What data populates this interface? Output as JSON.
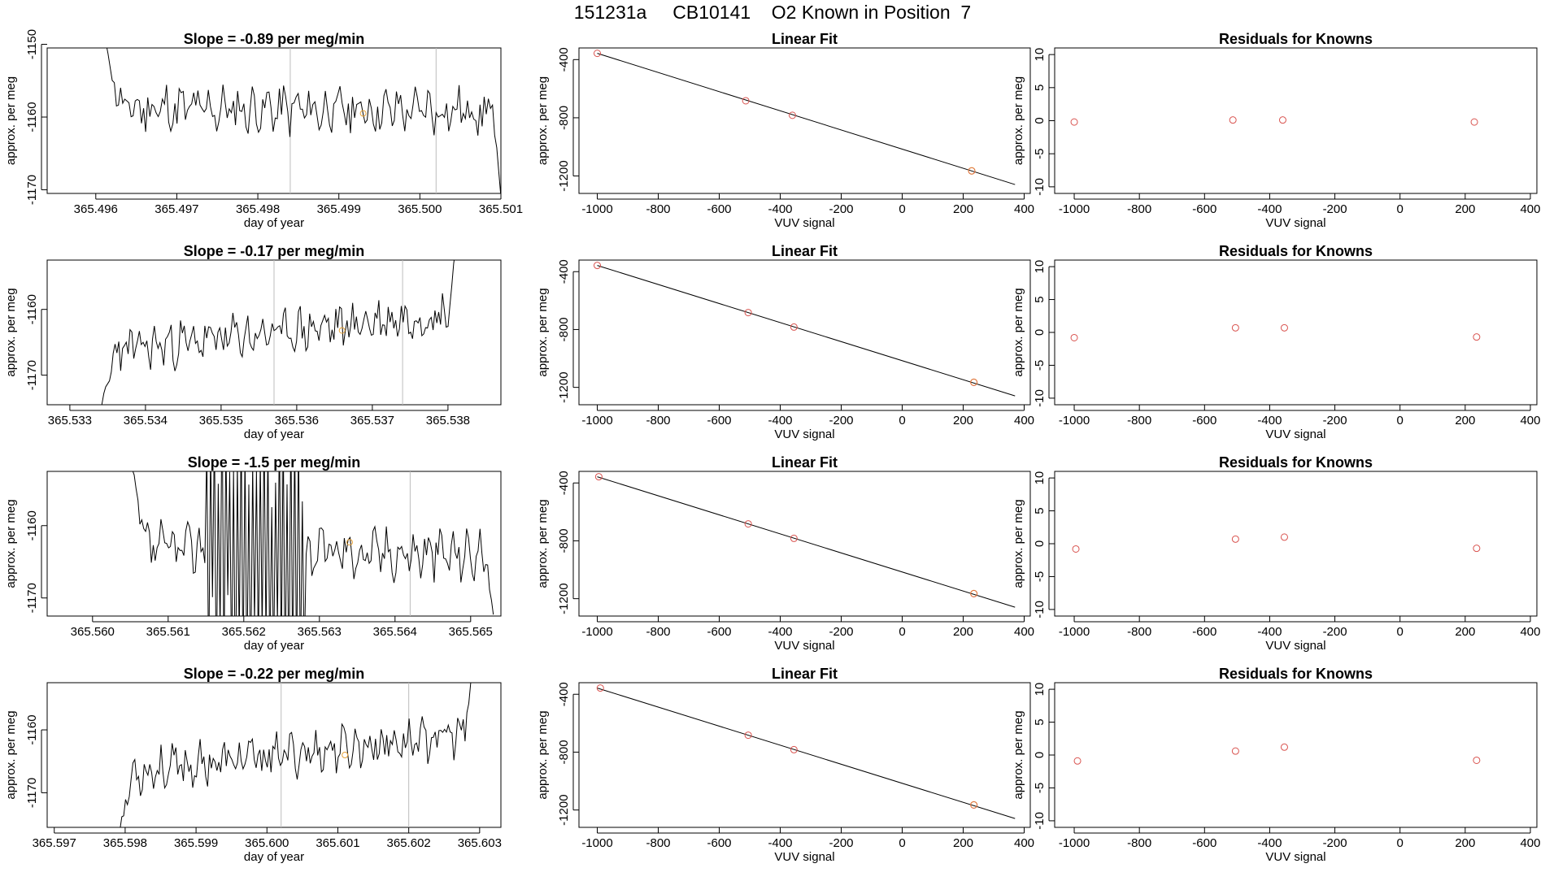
{
  "page": {
    "title": "151231a     CB10141    O2 Known in Position  7"
  },
  "colors": {
    "line": "#000000",
    "point_open": "#d9534f",
    "point_highlight": "#e8a33a",
    "vline": "#bdbdbd",
    "frame": "#000000"
  },
  "chart_data": [
    {
      "type": "line",
      "row": 1,
      "col": "timeseries",
      "title": "Slope =  -0.89  per meg/min",
      "xlabel": "day of year",
      "ylabel": "approx. per meg",
      "xlim": [
        365.4954,
        365.501
      ],
      "ylim": [
        -1170.5,
        -1150.5
      ],
      "xticks": [
        365.496,
        365.497,
        365.498,
        365.499,
        365.5,
        365.501
      ],
      "xtick_labels": [
        "365.496",
        "365.497",
        "365.498",
        "365.499",
        "365.500",
        "365.501"
      ],
      "yticks": [
        -1150,
        -1160,
        -1170
      ],
      "ytick_labels": [
        "-1150",
        "-1160",
        "-1170"
      ],
      "vlines": [
        365.4984,
        365.5002
      ],
      "highlight_point": [
        365.4993,
        -1159.5
      ],
      "series": {
        "x_start": 365.4961,
        "x_end": 365.501,
        "level_start": -1158.8,
        "level_end": -1159.2,
        "noise": 2.6,
        "seed": 11,
        "start_from": -1149,
        "end_to": -1171
      }
    },
    {
      "type": "line",
      "row": 1,
      "col": "linear_fit",
      "title": "Linear Fit",
      "xlabel": "VUV signal",
      "ylabel": "approx. per meg",
      "xlim": [
        -1060,
        420
      ],
      "ylim": [
        -1320,
        -320
      ],
      "xticks": [
        -1000,
        -800,
        -600,
        -400,
        -200,
        0,
        200,
        400
      ],
      "xtick_labels": [
        "-1000",
        "-800",
        "-600",
        "-400",
        "-200",
        "0",
        "200",
        "400"
      ],
      "yticks": [
        -400,
        -800,
        -1200
      ],
      "ytick_labels": [
        "-400",
        "-800",
        "-1200"
      ],
      "fit_line": [
        [
          -1000,
          -357
        ],
        [
          370,
          -1259
        ]
      ],
      "points": [
        [
          -1000,
          -357
        ],
        [
          -513,
          -683
        ],
        [
          -360,
          -783
        ]
      ],
      "highlight_points": [
        [
          228,
          -1165
        ]
      ]
    },
    {
      "type": "scatter",
      "row": 1,
      "col": "residuals",
      "title": "Residuals for Knowns",
      "xlabel": "VUV signal",
      "ylabel": "approx. per meg",
      "xlim": [
        -1060,
        420
      ],
      "ylim": [
        -11,
        11
      ],
      "xticks": [
        -1000,
        -800,
        -600,
        -400,
        -200,
        0,
        200,
        400
      ],
      "xtick_labels": [
        "-1000",
        "-800",
        "-600",
        "-400",
        "-200",
        "0",
        "200",
        "400"
      ],
      "yticks": [
        10,
        5,
        0,
        -5,
        -10
      ],
      "ytick_labels": [
        "10",
        "5",
        "0",
        "-5",
        "-10"
      ],
      "points": [
        [
          -1000,
          -0.2
        ],
        [
          -513,
          0.1
        ],
        [
          -360,
          0.1
        ],
        [
          228,
          -0.2
        ]
      ]
    },
    {
      "type": "line",
      "row": 2,
      "col": "timeseries",
      "title": "Slope =  -0.17  per meg/min",
      "xlabel": "day of year",
      "ylabel": "approx. per meg",
      "xlim": [
        365.5327,
        365.5387
      ],
      "ylim": [
        -1174.5,
        -1152.5
      ],
      "xticks": [
        365.533,
        365.534,
        365.535,
        365.536,
        365.537,
        365.538
      ],
      "xtick_labels": [
        "365.533",
        "365.534",
        "365.535",
        "365.536",
        "365.537",
        "365.538"
      ],
      "yticks": [
        -1160,
        -1170
      ],
      "ytick_labels": [
        "-1160",
        "-1170"
      ],
      "vlines": [
        365.5357,
        365.5374
      ],
      "highlight_point": [
        365.5366,
        -1163.2
      ],
      "series": {
        "x_start": 365.5334,
        "x_end": 365.5381,
        "level_start": -1166.5,
        "level_end": -1160.5,
        "noise": 2.6,
        "seed": 23,
        "start_from": -1176,
        "end_to": -1151
      }
    },
    {
      "type": "line",
      "row": 2,
      "col": "linear_fit",
      "title": "Linear Fit",
      "xlabel": "VUV signal",
      "ylabel": "approx. per meg",
      "xlim": [
        -1060,
        420
      ],
      "ylim": [
        -1320,
        -320
      ],
      "xticks": [
        -1000,
        -800,
        -600,
        -400,
        -200,
        0,
        200,
        400
      ],
      "xtick_labels": [
        "-1000",
        "-800",
        "-600",
        "-400",
        "-200",
        "0",
        "200",
        "400"
      ],
      "yticks": [
        -400,
        -800,
        -1200
      ],
      "ytick_labels": [
        "-400",
        "-800",
        "-1200"
      ],
      "fit_line": [
        [
          -1000,
          -357
        ],
        [
          370,
          -1259
        ]
      ],
      "points": [
        [
          -1000,
          -357
        ],
        [
          -505,
          -683
        ],
        [
          -355,
          -783
        ]
      ],
      "highlight_points": [
        [
          235,
          -1165
        ]
      ]
    },
    {
      "type": "scatter",
      "row": 2,
      "col": "residuals",
      "title": "Residuals for Knowns",
      "xlabel": "VUV signal",
      "ylabel": "approx. per meg",
      "xlim": [
        -1060,
        420
      ],
      "ylim": [
        -11,
        11
      ],
      "xticks": [
        -1000,
        -800,
        -600,
        -400,
        -200,
        0,
        200,
        400
      ],
      "xtick_labels": [
        "-1000",
        "-800",
        "-600",
        "-400",
        "-200",
        "0",
        "200",
        "400"
      ],
      "yticks": [
        10,
        5,
        0,
        -5,
        -10
      ],
      "ytick_labels": [
        "10",
        "5",
        "0",
        "-5",
        "-10"
      ],
      "points": [
        [
          -1000,
          -0.8
        ],
        [
          -505,
          0.7
        ],
        [
          -355,
          0.7
        ],
        [
          235,
          -0.7
        ]
      ]
    },
    {
      "type": "line",
      "row": 3,
      "col": "timeseries",
      "title": "Slope =  -1.5  per meg/min",
      "xlabel": "day of year",
      "ylabel": "approx. per meg",
      "xlim": [
        365.5594,
        365.5654
      ],
      "ylim": [
        -1172.5,
        -1152.5
      ],
      "xticks": [
        365.56,
        365.561,
        365.562,
        365.563,
        365.564,
        365.565
      ],
      "xtick_labels": [
        "365.560",
        "365.561",
        "365.562",
        "365.563",
        "365.564",
        "365.565"
      ],
      "yticks": [
        -1160,
        -1170
      ],
      "ytick_labels": [
        "-1160",
        "-1170"
      ],
      "vlines": [
        365.5625,
        365.5642
      ],
      "highlight_point": [
        365.5634,
        -1162.3
      ],
      "series": {
        "x_start": 365.5605,
        "x_end": 365.5653,
        "level_start": -1163.0,
        "level_end": -1164.0,
        "noise": 2.6,
        "seed": 37,
        "start_from": -1151,
        "end_to": -1172.3,
        "burst": [
          365.5615,
          365.5628
        ]
      }
    },
    {
      "type": "line",
      "row": 3,
      "col": "linear_fit",
      "title": "Linear Fit",
      "xlabel": "VUV signal",
      "ylabel": "approx. per meg",
      "xlim": [
        -1060,
        420
      ],
      "ylim": [
        -1320,
        -320
      ],
      "xticks": [
        -1000,
        -800,
        -600,
        -400,
        -200,
        0,
        200,
        400
      ],
      "xtick_labels": [
        "-1000",
        "-800",
        "-600",
        "-400",
        "-200",
        "0",
        "200",
        "400"
      ],
      "yticks": [
        -400,
        -800,
        -1200
      ],
      "ytick_labels": [
        "-400",
        "-800",
        "-1200"
      ],
      "fit_line": [
        [
          -1000,
          -357
        ],
        [
          370,
          -1259
        ]
      ],
      "points": [
        [
          -995,
          -357
        ],
        [
          -505,
          -683
        ],
        [
          -355,
          -783
        ]
      ],
      "highlight_points": [
        [
          235,
          -1165
        ]
      ]
    },
    {
      "type": "scatter",
      "row": 3,
      "col": "residuals",
      "title": "Residuals for Knowns",
      "xlabel": "VUV signal",
      "ylabel": "approx. per meg",
      "xlim": [
        -1060,
        420
      ],
      "ylim": [
        -11,
        11
      ],
      "xticks": [
        -1000,
        -800,
        -600,
        -400,
        -200,
        0,
        200,
        400
      ],
      "xtick_labels": [
        "-1000",
        "-800",
        "-600",
        "-400",
        "-200",
        "0",
        "200",
        "400"
      ],
      "yticks": [
        10,
        5,
        0,
        -5,
        -10
      ],
      "ytick_labels": [
        "10",
        "5",
        "0",
        "-5",
        "-10"
      ],
      "points": [
        [
          -995,
          -0.8
        ],
        [
          -505,
          0.7
        ],
        [
          -355,
          1.0
        ],
        [
          235,
          -0.7
        ]
      ]
    },
    {
      "type": "line",
      "row": 4,
      "col": "timeseries",
      "title": "Slope =  -0.22  per meg/min",
      "xlabel": "day of year",
      "ylabel": "approx. per meg",
      "xlim": [
        365.5969,
        365.6033
      ],
      "ylim": [
        -1175.5,
        -1152.5
      ],
      "xticks": [
        365.597,
        365.598,
        365.599,
        365.6,
        365.601,
        365.602,
        365.603
      ],
      "xtick_labels": [
        "365.597",
        "365.598",
        "365.599",
        "365.600",
        "365.601",
        "365.602",
        "365.603"
      ],
      "yticks": [
        -1160,
        -1170
      ],
      "ytick_labels": [
        "-1160",
        "-1170"
      ],
      "vlines": [
        365.6002,
        365.602
      ],
      "highlight_point": [
        365.6011,
        -1164.0
      ],
      "series": {
        "x_start": 365.5979,
        "x_end": 365.6029,
        "level_start": -1167.0,
        "level_end": -1160.5,
        "noise": 2.6,
        "seed": 53,
        "start_from": -1177,
        "end_to": -1150
      }
    },
    {
      "type": "line",
      "row": 4,
      "col": "linear_fit",
      "title": "Linear Fit",
      "xlabel": "VUV signal",
      "ylabel": "approx. per meg",
      "xlim": [
        -1060,
        420
      ],
      "ylim": [
        -1320,
        -320
      ],
      "xticks": [
        -1000,
        -800,
        -600,
        -400,
        -200,
        0,
        200,
        400
      ],
      "xtick_labels": [
        "-1000",
        "-800",
        "-600",
        "-400",
        "-200",
        "0",
        "200",
        "400"
      ],
      "yticks": [
        -400,
        -800,
        -1200
      ],
      "ytick_labels": [
        "-400",
        "-800",
        "-1200"
      ],
      "fit_line": [
        [
          -1000,
          -357
        ],
        [
          370,
          -1259
        ]
      ],
      "points": [
        [
          -990,
          -357
        ],
        [
          -505,
          -683
        ],
        [
          -355,
          -783
        ]
      ],
      "highlight_points": [
        [
          235,
          -1165
        ]
      ]
    },
    {
      "type": "scatter",
      "row": 4,
      "col": "residuals",
      "title": "Residuals for Knowns",
      "xlabel": "VUV signal",
      "ylabel": "approx. per meg",
      "xlim": [
        -1060,
        420
      ],
      "ylim": [
        -11,
        11
      ],
      "xticks": [
        -1000,
        -800,
        -600,
        -400,
        -200,
        0,
        200,
        400
      ],
      "xtick_labels": [
        "-1000",
        "-800",
        "-600",
        "-400",
        "-200",
        "0",
        "200",
        "400"
      ],
      "yticks": [
        10,
        5,
        0,
        -5,
        -10
      ],
      "ytick_labels": [
        "10",
        "5",
        "0",
        "-5",
        "-10"
      ],
      "points": [
        [
          -990,
          -0.9
        ],
        [
          -505,
          0.6
        ],
        [
          -355,
          1.2
        ],
        [
          235,
          -0.8
        ]
      ]
    }
  ]
}
